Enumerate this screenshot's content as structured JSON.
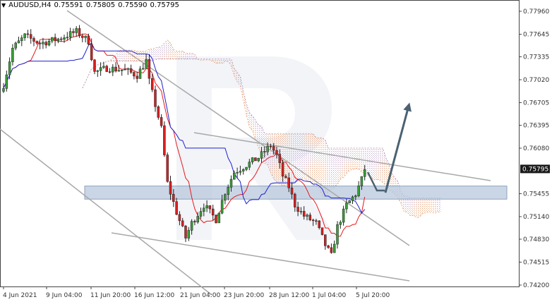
{
  "header": {
    "symbol_timeframe": "AUDUSD,H4",
    "open": "0.75591",
    "high": "0.75805",
    "low": "0.75590",
    "close": "0.75795"
  },
  "colors": {
    "bull_candle": "#3a9d3a",
    "bear_candle": "#d62020",
    "tenkan": "#e8191c",
    "kijun": "#2020d0",
    "cloud_a": "#e8a070",
    "cloud_b": "#b090c0",
    "trendline": "#a8a8a8",
    "zone": "#b8c8dc",
    "arrow": "#4a6272",
    "current_price_bg": "#1a1a1a"
  },
  "chart_data": {
    "type": "candlestick",
    "symbol": "AUDUSD",
    "timeframe": "H4",
    "y_axis_ticks": [
      "0.77960",
      "0.77645",
      "0.77335",
      "0.77020",
      "0.76705",
      "0.76395",
      "0.76080",
      "0.75455",
      "0.75140",
      "0.74830",
      "0.74515",
      "0.74200"
    ],
    "ylim": [
      0.742,
      0.7812
    ],
    "current_price": "0.75795",
    "x_axis_ticks": [
      "4 Jun 2021",
      "9 Jun 04:00",
      "11 Jun 20:00",
      "16 Jun 12:00",
      "21 Jun 04:00",
      "23 Jun 20:00",
      "28 Jun 12:00",
      "1 Jul 04:00",
      "5 Jul 20:00"
    ],
    "support_zone": [
      0.7538,
      0.7556
    ],
    "forecast": "rebound from the support zone and rise toward 0.7670"
  }
}
